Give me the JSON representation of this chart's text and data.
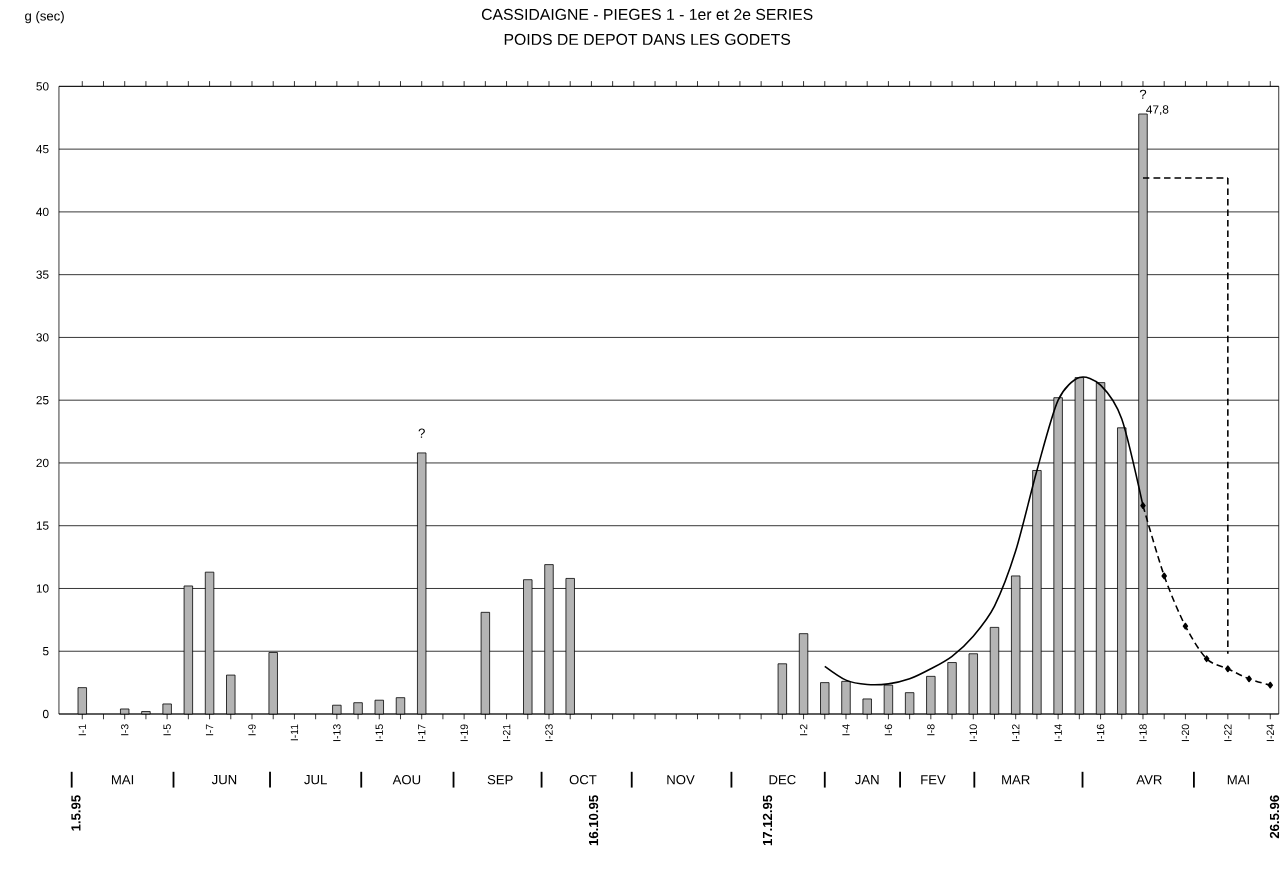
{
  "chart_data": {
    "type": "bar",
    "title": "CASSIDAIGNE - PIEGES 1 - 1er et 2e SERIES",
    "subtitle": "POIDS DE DEPOT DANS LES GODETS",
    "ylabel": "g (sec)",
    "ylim": [
      0,
      50
    ],
    "yticks": [
      0,
      5,
      10,
      15,
      20,
      25,
      30,
      35,
      40,
      45,
      50
    ],
    "grid": "y",
    "categories": [
      "I-1",
      null,
      "I-3",
      null,
      "I-5",
      null,
      "I-7",
      null,
      "I-9",
      null,
      "I-11",
      null,
      "I-13",
      null,
      "I-15",
      null,
      "I-17",
      null,
      "I-19",
      null,
      "I-21",
      null,
      "I-23",
      null,
      null,
      null,
      null,
      null,
      null,
      null,
      null,
      null,
      null,
      null,
      "I-2",
      null,
      "I-4",
      null,
      "I-6",
      null,
      "I-8",
      null,
      "I-10",
      null,
      "I-12",
      null,
      "I-14",
      null,
      "I-16",
      null,
      "I-18",
      null,
      "I-20",
      null,
      "I-22",
      null,
      "I-24"
    ],
    "series": [
      {
        "color": "#b4b4b4",
        "values": [
          2.1,
          null,
          0.4,
          0.2,
          0.8,
          10.2,
          11.3,
          3.1,
          null,
          4.9,
          null,
          null,
          0.7,
          0.9,
          1.1,
          1.3,
          20.8,
          null,
          null,
          8.1,
          null,
          10.7,
          11.9,
          10.8,
          null,
          null,
          null,
          null,
          null,
          null,
          null,
          null,
          null,
          4.0,
          6.4,
          2.5,
          2.6,
          1.2,
          2.3,
          1.7,
          3.0,
          4.1,
          4.8,
          6.9,
          11.0,
          19.4,
          25.2,
          26.8,
          26.4,
          22.8,
          47.8,
          null,
          null,
          null,
          null,
          null,
          null
        ],
        "value_labels": [
          null,
          null,
          null,
          null,
          null,
          null,
          null,
          null,
          null,
          null,
          null,
          null,
          null,
          null,
          null,
          null,
          null,
          null,
          null,
          null,
          null,
          null,
          null,
          null,
          null,
          null,
          null,
          null,
          null,
          null,
          null,
          null,
          null,
          null,
          null,
          null,
          null,
          null,
          null,
          null,
          null,
          null,
          null,
          null,
          null,
          null,
          null,
          null,
          null,
          null,
          "47,8",
          null,
          null,
          null,
          null,
          null,
          null
        ]
      },
      {
        "type": "line",
        "color": "#000000",
        "line_style": "solid",
        "marker": "none",
        "values": [
          null,
          null,
          null,
          null,
          null,
          null,
          null,
          null,
          null,
          null,
          null,
          null,
          null,
          null,
          null,
          null,
          null,
          null,
          null,
          null,
          null,
          null,
          null,
          null,
          null,
          null,
          null,
          null,
          null,
          null,
          null,
          null,
          null,
          null,
          null,
          3.8,
          2.7,
          2.35,
          2.4,
          2.8,
          3.6,
          4.6,
          6.2,
          8.6,
          13.0,
          19.4,
          25.0,
          26.8,
          26.2,
          23.5,
          16.6,
          null,
          null,
          null,
          null,
          null,
          null
        ]
      },
      {
        "type": "line",
        "color": "#000000",
        "line_style": "dashed",
        "marker": "diamond",
        "values": [
          null,
          null,
          null,
          null,
          null,
          null,
          null,
          null,
          null,
          null,
          null,
          null,
          null,
          null,
          null,
          null,
          null,
          null,
          null,
          null,
          null,
          null,
          null,
          null,
          null,
          null,
          null,
          null,
          null,
          null,
          null,
          null,
          null,
          null,
          null,
          null,
          null,
          null,
          null,
          null,
          null,
          null,
          null,
          null,
          null,
          null,
          null,
          null,
          null,
          null,
          16.6,
          11.0,
          7.0,
          4.4,
          3.6,
          2.8,
          2.3
        ]
      },
      {
        "type": "line",
        "color": "#000000",
        "line_style": "dashed",
        "marker": "none",
        "values": [
          null,
          null,
          null,
          null,
          null,
          null,
          null,
          null,
          null,
          null,
          null,
          null,
          null,
          null,
          null,
          null,
          null,
          null,
          null,
          null,
          null,
          null,
          null,
          null,
          null,
          null,
          null,
          null,
          null,
          null,
          null,
          null,
          null,
          null,
          null,
          null,
          null,
          null,
          null,
          null,
          null,
          null,
          null,
          null,
          null,
          null,
          null,
          null,
          null,
          null,
          42.7,
          42.7,
          42.7,
          42.7,
          42.7,
          null,
          null
        ],
        "errors": [
          null,
          null,
          null,
          null,
          null,
          null,
          null,
          null,
          null,
          null,
          null,
          null,
          null,
          null,
          null,
          null,
          null,
          null,
          null,
          null,
          null,
          null,
          null,
          null,
          null,
          null,
          null,
          null,
          null,
          null,
          null,
          null,
          null,
          null,
          null,
          null,
          null,
          null,
          null,
          null,
          null,
          null,
          null,
          null,
          null,
          null,
          null,
          null,
          null,
          null,
          null,
          null,
          null,
          null,
          [
            4.8,
            42.7
          ],
          null,
          null
        ]
      }
    ],
    "annotations": [
      {
        "text": "?",
        "x": "I-17",
        "y": 20.8
      },
      {
        "text": "?",
        "x": "I-18",
        "y": 47.8
      },
      "MAI",
      "JUN",
      "JUL",
      "AOU",
      "SEP",
      "OCT",
      "NOV",
      "DEC",
      "JAN",
      "FEV",
      "MAR",
      "AVR",
      "MAI",
      "1.5.95",
      "16.10.95",
      "17.12.95",
      "26.5.96"
    ]
  }
}
